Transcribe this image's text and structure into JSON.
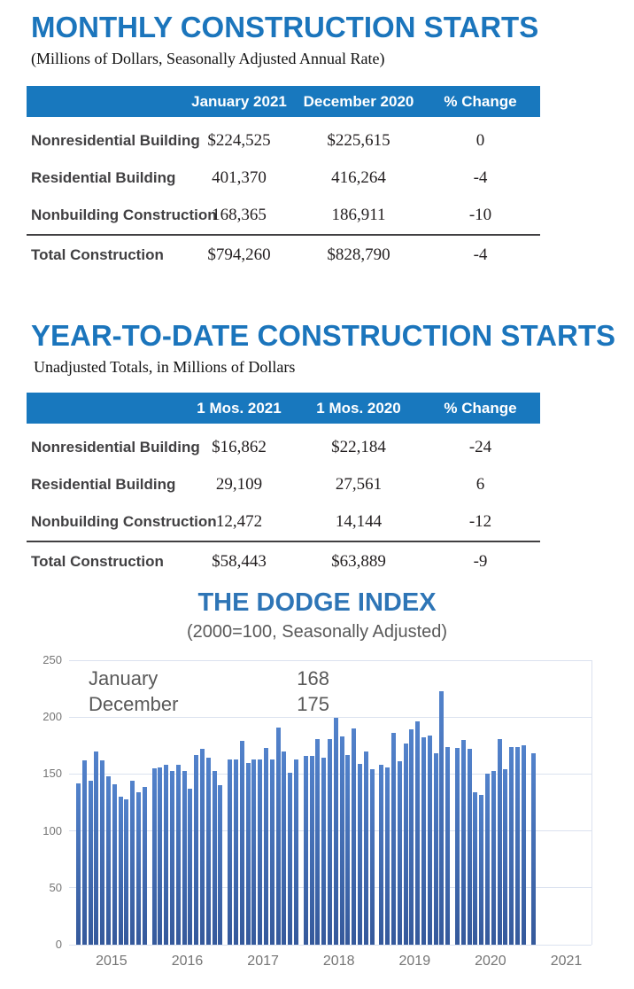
{
  "monthly": {
    "title": "MONTHLY CONSTRUCTION STARTS",
    "subtitle": "(Millions of Dollars, Seasonally Adjusted Annual Rate)",
    "columns": {
      "c1": "January 2021",
      "c2": "December 2020",
      "c3": "% Change"
    },
    "rows": [
      {
        "label": "Nonresidential Building",
        "v1": "$224,525",
        "v2": "$225,615",
        "change": "0"
      },
      {
        "label": "Residential Building",
        "v1": "401,370",
        "v2": "416,264",
        "change": "-4"
      },
      {
        "label": "Nonbuilding Construction",
        "v1": "168,365",
        "v2": "186,911",
        "change": "-10"
      }
    ],
    "total": {
      "label": "Total Construction",
      "v1": "$794,260",
      "v2": "$828,790",
      "change": "-4"
    }
  },
  "ytd": {
    "title": "YEAR-TO-DATE CONSTRUCTION STARTS",
    "subtitle": "Unadjusted Totals, in Millions of Dollars",
    "columns": {
      "c1": "1 Mos. 2021",
      "c2": "1 Mos. 2020",
      "c3": "% Change"
    },
    "rows": [
      {
        "label": "Nonresidential Building",
        "v1": "$16,862",
        "v2": "$22,184",
        "change": "-24"
      },
      {
        "label": "Residential Building",
        "v1": "29,109",
        "v2": "27,561",
        "change": "6"
      },
      {
        "label": "Nonbuilding Construction",
        "v1": "12,472",
        "v2": "14,144",
        "change": "-12"
      }
    ],
    "total": {
      "label": "Total Construction",
      "v1": "$58,443",
      "v2": "$63,889",
      "change": "-9"
    }
  },
  "chart_data": {
    "type": "bar",
    "title": "THE DODGE INDEX",
    "subtitle": "(2000=100, Seasonally Adjusted)",
    "xlabel": "",
    "ylabel": "",
    "ylim": [
      0,
      250
    ],
    "yticks": [
      0,
      50,
      100,
      150,
      200,
      250
    ],
    "grid": true,
    "legend_position": "none",
    "bar_color": "#4472c4",
    "annotation_rows": [
      {
        "label": "January",
        "value": "168"
      },
      {
        "label": "December",
        "value": "175"
      }
    ],
    "years": [
      {
        "year": "2015",
        "values": [
          142,
          162,
          144,
          170,
          162,
          148,
          141,
          130,
          128,
          144,
          134,
          139
        ]
      },
      {
        "year": "2016",
        "values": [
          155,
          156,
          158,
          153,
          158,
          153,
          137,
          167,
          172,
          164,
          153,
          140
        ]
      },
      {
        "year": "2017",
        "values": [
          163,
          163,
          179,
          160,
          163,
          163,
          173,
          163,
          191,
          170,
          151,
          163
        ]
      },
      {
        "year": "2018",
        "values": [
          166,
          166,
          181,
          164,
          181,
          199,
          183,
          167,
          190,
          159,
          170,
          154
        ]
      },
      {
        "year": "2019",
        "values": [
          158,
          156,
          186,
          161,
          177,
          189,
          196,
          182,
          184,
          168,
          223,
          174
        ]
      },
      {
        "year": "2020",
        "values": [
          173,
          180,
          172,
          134,
          132,
          150,
          153,
          181,
          154,
          174,
          174,
          175
        ]
      },
      {
        "year": "2021",
        "values": [
          168
        ]
      }
    ]
  }
}
